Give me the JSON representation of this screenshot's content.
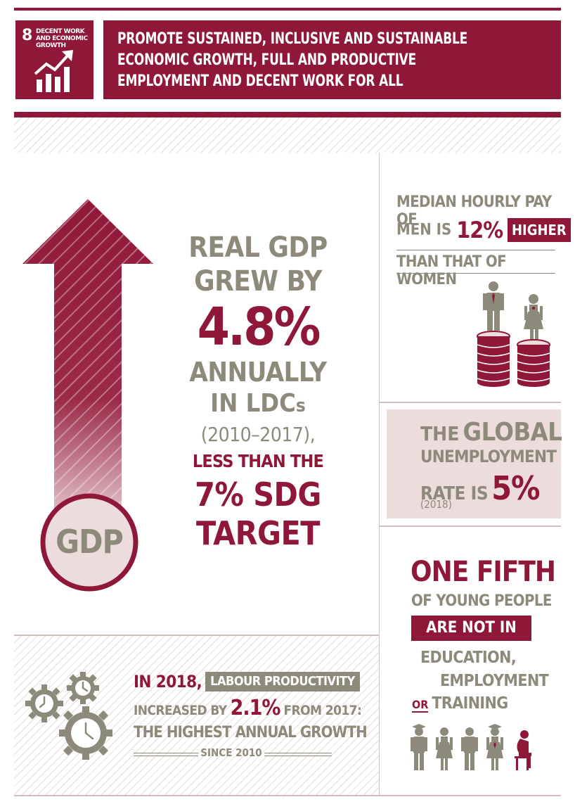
{
  "header": {
    "goal_number": "8",
    "goal_label": "DECENT WORK AND ECONOMIC GROWTH",
    "goal_statement": "PROMOTE SUSTAINED, INCLUSIVE AND SUSTAINABLE ECONOMIC GROWTH, FULL AND PRODUCTIVE EMPLOYMENT AND DECENT WORK FOR ALL",
    "icon": "growth-chart-arrow-icon"
  },
  "colors": {
    "primary": "#8f1838",
    "grey": "#8d8a7c",
    "pale": "#ecdcdc",
    "line": "#d4bcbc"
  },
  "gdp": {
    "circle_label": "GDP",
    "line1": "REAL GDP",
    "line2": "GREW BY",
    "value": "4.8%",
    "line3": "ANNUALLY",
    "line4_main": "IN LDC",
    "line4_suffix": "s",
    "period": "(2010–2017),",
    "line5": "LESS THAN THE",
    "line6": "7% SDG",
    "line7": "TARGET"
  },
  "pay": {
    "line1": "MEDIAN HOURLY PAY OF",
    "line2_prefix": "MEN IS",
    "value": "12%",
    "badge": "HIGHER",
    "line3": "THAN THAT OF WOMEN",
    "icon": "men-women-coin-stacks-icon"
  },
  "unemployment": {
    "the": "THE",
    "global": "GLOBAL",
    "line2": "UNEMPLOYMENT",
    "line3_prefix": "RATE IS",
    "value": "5%",
    "year": "(2018)"
  },
  "youth": {
    "headline": "ONE FIFTH",
    "line2": "OF YOUNG PEOPLE",
    "badge": "ARE NOT IN",
    "line3": "EDUCATION,",
    "line4": "EMPLOYMENT",
    "line5_or": "OR",
    "line5": "TRAINING",
    "icon": "young-people-row-icon"
  },
  "productivity": {
    "prefix": "IN 2018,",
    "badge": "LABOUR PRODUCTIVITY",
    "line2_prefix": "INCREASED BY",
    "value": "2.1%",
    "line2_suffix": "FROM 2017:",
    "line3": "THE HIGHEST ANNUAL GROWTH",
    "line4": "SINCE 2010",
    "icon": "gears-clocks-icon"
  }
}
